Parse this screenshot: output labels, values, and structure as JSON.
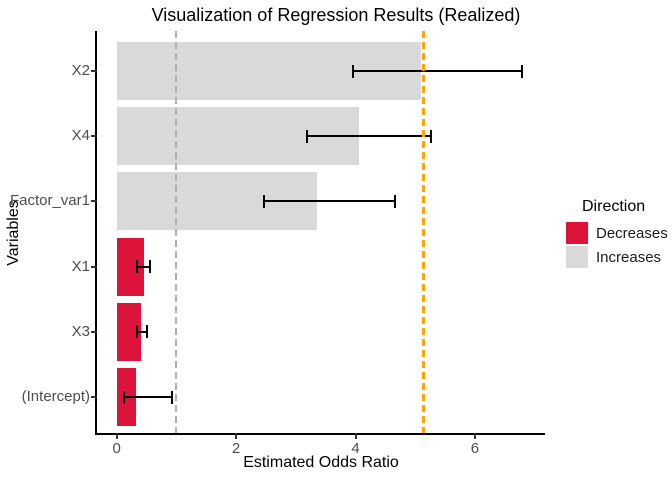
{
  "title": "Visualization of Regression Results (Realized)",
  "axes": {
    "x": {
      "label": "Estimated Odds Ratio",
      "tick_labels": [
        "0",
        "2",
        "4",
        "6"
      ],
      "tick_values": [
        0,
        2,
        4,
        6
      ]
    },
    "y": {
      "label": "Variables"
    }
  },
  "legend": {
    "title": "Direction",
    "items": [
      {
        "label": "Decreases",
        "color": "#DC143C"
      },
      {
        "label": "Increases",
        "color": "#D9D9D9"
      }
    ]
  },
  "chart_data": {
    "type": "bar",
    "orientation": "horizontal",
    "title": "Visualization of Regression Results (Realized)",
    "xlabel": "Estimated Odds Ratio",
    "ylabel": "Variables",
    "categories": [
      "X2",
      "X4",
      "Factor_var1",
      "X1",
      "X3",
      "(Intercept)"
    ],
    "values": [
      5.1,
      4.06,
      3.36,
      0.45,
      0.41,
      0.32
    ],
    "ci_low": [
      3.94,
      3.17,
      2.45,
      0.33,
      0.32,
      0.11
    ],
    "ci_high": [
      6.81,
      5.28,
      4.68,
      0.57,
      0.52,
      0.95
    ],
    "directions": [
      "Increases",
      "Increases",
      "Increases",
      "Decreases",
      "Decreases",
      "Decreases"
    ],
    "colors": {
      "Decreases": "#DC143C",
      "Increases": "#D9D9D9"
    },
    "reference_lines": [
      {
        "x": 1.0,
        "color": "#B0B0B0",
        "style": "dashed",
        "width": 2,
        "name": "null-effect-reference-line"
      },
      {
        "x": 5.14,
        "color": "#FFA500",
        "style": "dashed",
        "width": 3,
        "name": "orange-reference-line"
      }
    ],
    "xlim": [
      -0.35,
      7.17
    ],
    "xticks": [
      0,
      2,
      4,
      6
    ],
    "bar_baseline": 0,
    "grid": false,
    "legend_position": "right",
    "legend_title": "Direction"
  }
}
